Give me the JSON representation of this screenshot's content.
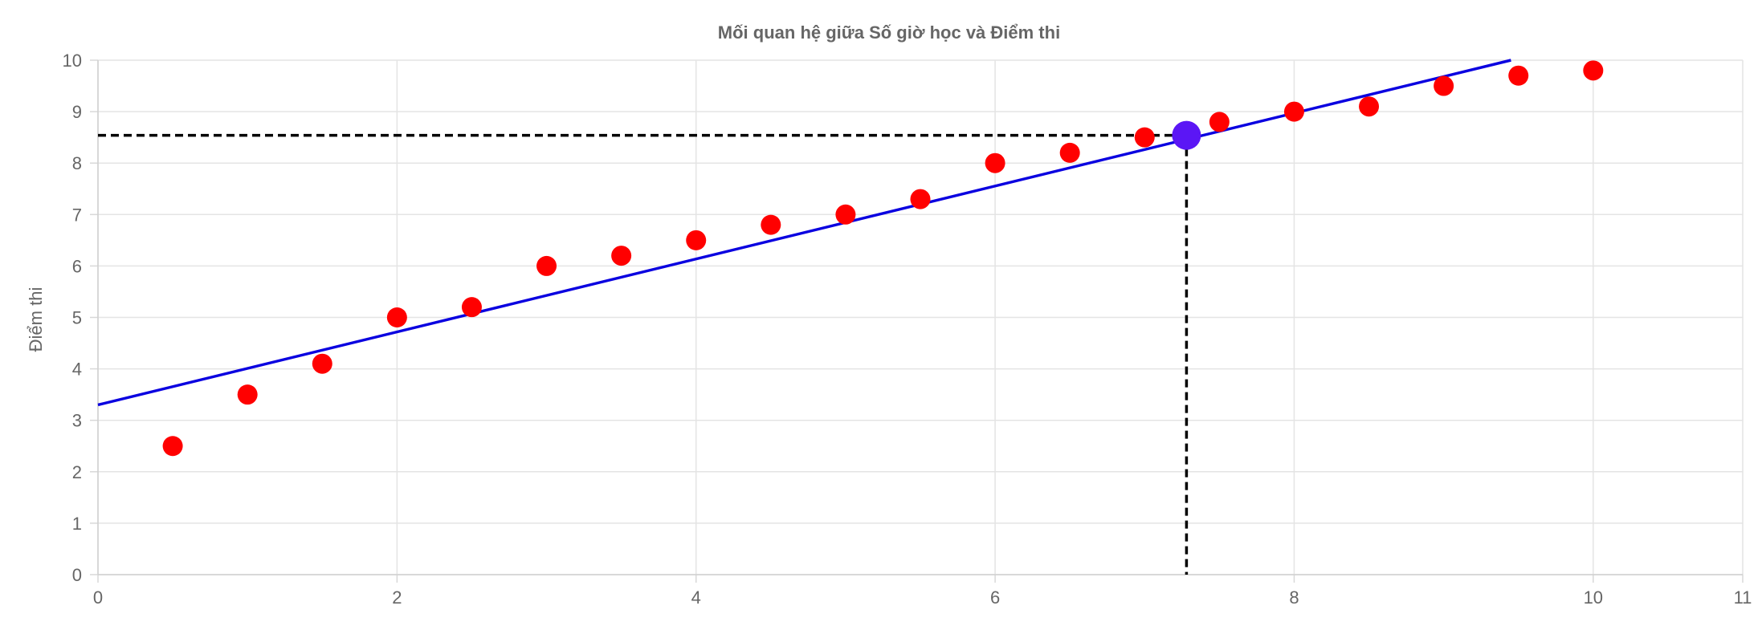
{
  "chart_data": {
    "type": "scatter",
    "title": "Mối quan hệ giữa Số giờ học và Điểm thi",
    "xlabel": "",
    "ylabel": "Điểm thi",
    "xlim": [
      0,
      11
    ],
    "ylim": [
      0,
      10
    ],
    "x_ticks": [
      "0",
      "2",
      "4",
      "6",
      "8",
      "10"
    ],
    "x_tick_values": [
      0,
      2,
      4,
      6,
      8,
      10
    ],
    "x_extra_tick": "11",
    "y_ticks": [
      "0",
      "1",
      "2",
      "3",
      "4",
      "5",
      "6",
      "7",
      "8",
      "9",
      "10"
    ],
    "grid": true,
    "series": [
      {
        "type": "scatter",
        "color": "#ff0000",
        "points": [
          {
            "x": 0.5,
            "y": 2.5
          },
          {
            "x": 1.0,
            "y": 3.5
          },
          {
            "x": 1.5,
            "y": 4.1
          },
          {
            "x": 2.0,
            "y": 5.0
          },
          {
            "x": 2.5,
            "y": 5.2
          },
          {
            "x": 3.0,
            "y": 6.0
          },
          {
            "x": 3.5,
            "y": 6.2
          },
          {
            "x": 4.0,
            "y": 6.5
          },
          {
            "x": 4.5,
            "y": 6.8
          },
          {
            "x": 5.0,
            "y": 7.0
          },
          {
            "x": 5.5,
            "y": 7.3
          },
          {
            "x": 6.0,
            "y": 8.0
          },
          {
            "x": 6.5,
            "y": 8.2
          },
          {
            "x": 7.0,
            "y": 8.5
          },
          {
            "x": 7.5,
            "y": 8.8
          },
          {
            "x": 8.0,
            "y": 9.0
          },
          {
            "x": 8.5,
            "y": 9.1
          },
          {
            "x": 9.0,
            "y": 9.5
          },
          {
            "x": 9.5,
            "y": 9.7
          },
          {
            "x": 10.0,
            "y": 9.8
          }
        ]
      },
      {
        "type": "line",
        "color": "#0a00e0",
        "points": [
          {
            "x": 0,
            "y": 3.3
          },
          {
            "x": 9.45,
            "y": 10.0
          }
        ]
      },
      {
        "type": "highlight",
        "color": "#5b16f5",
        "points": [
          {
            "x": 7.28,
            "y": 8.54
          }
        ]
      }
    ]
  }
}
